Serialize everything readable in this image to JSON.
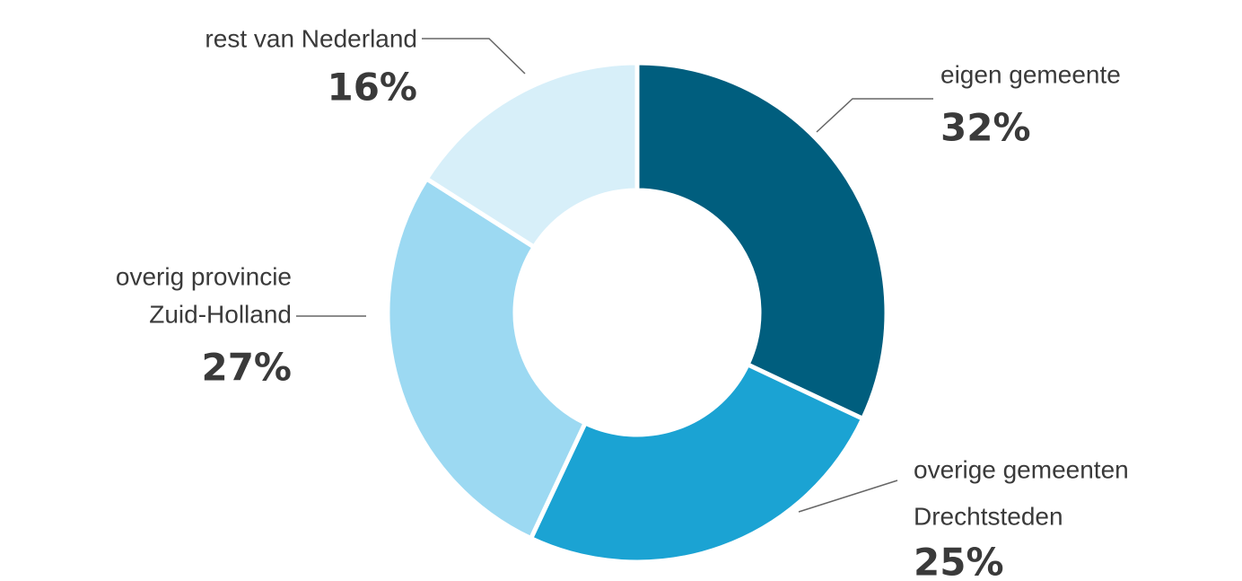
{
  "chart_data": {
    "type": "donut",
    "categories": [
      [
        "eigen gemeente"
      ],
      [
        "overige gemeenten",
        "Drechtsteden"
      ],
      [
        "overig provincie",
        "Zuid-Holland"
      ],
      [
        "rest van Nederland"
      ]
    ],
    "values": [
      32,
      25,
      27,
      16
    ],
    "value_labels": [
      "32%",
      "25%",
      "27%",
      "16%"
    ],
    "colors": [
      "#005e7e",
      "#1ba3d3",
      "#9cd9f2",
      "#d7eff9"
    ]
  }
}
